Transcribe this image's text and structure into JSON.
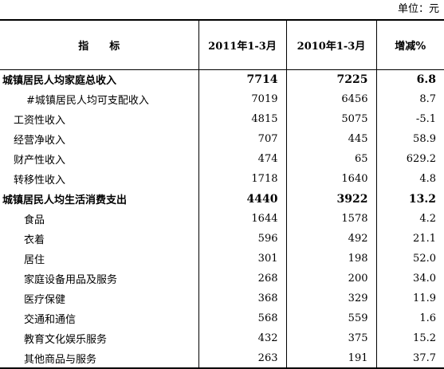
{
  "unit_label": "单位：元",
  "header": {
    "indicator": "指标",
    "col_2011": "2011年1-3月",
    "col_2010": "2010年1-3月",
    "col_change": "增减%"
  },
  "rows": [
    {
      "label": "城镇居民人均家庭总收入",
      "v2011": "7714",
      "v2010": "7225",
      "change": "6.8"
    },
    {
      "label": "#城镇居民人均可支配收入",
      "v2011": "7019",
      "v2010": "6456",
      "change": "8.7"
    },
    {
      "label": "工资性收入",
      "v2011": "4815",
      "v2010": "5075",
      "change": "-5.1"
    },
    {
      "label": "经营净收入",
      "v2011": "707",
      "v2010": "445",
      "change": "58.9"
    },
    {
      "label": "财产性收入",
      "v2011": "474",
      "v2010": "65",
      "change": "629.2"
    },
    {
      "label": "转移性收入",
      "v2011": "1718",
      "v2010": "1640",
      "change": "4.8"
    },
    {
      "label": "城镇居民人均生活消费支出",
      "v2011": "4440",
      "v2010": "3922",
      "change": "13.2"
    },
    {
      "label": "食品",
      "v2011": "1644",
      "v2010": "1578",
      "change": "4.2"
    },
    {
      "label": "衣着",
      "v2011": "596",
      "v2010": "492",
      "change": "21.1"
    },
    {
      "label": "居住",
      "v2011": "301",
      "v2010": "198",
      "change": "52.0"
    },
    {
      "label": "家庭设备用品及服务",
      "v2011": "268",
      "v2010": "200",
      "change": "34.0"
    },
    {
      "label": "医疗保健",
      "v2011": "368",
      "v2010": "329",
      "change": "11.9"
    },
    {
      "label": "交通和通信",
      "v2011": "568",
      "v2010": "559",
      "change": "1.6"
    },
    {
      "label": "教育文化娱乐服务",
      "v2011": "432",
      "v2010": "375",
      "change": "15.2"
    },
    {
      "label": "其他商品与服务",
      "v2011": "263",
      "v2010": "191",
      "change": "37.7"
    }
  ]
}
